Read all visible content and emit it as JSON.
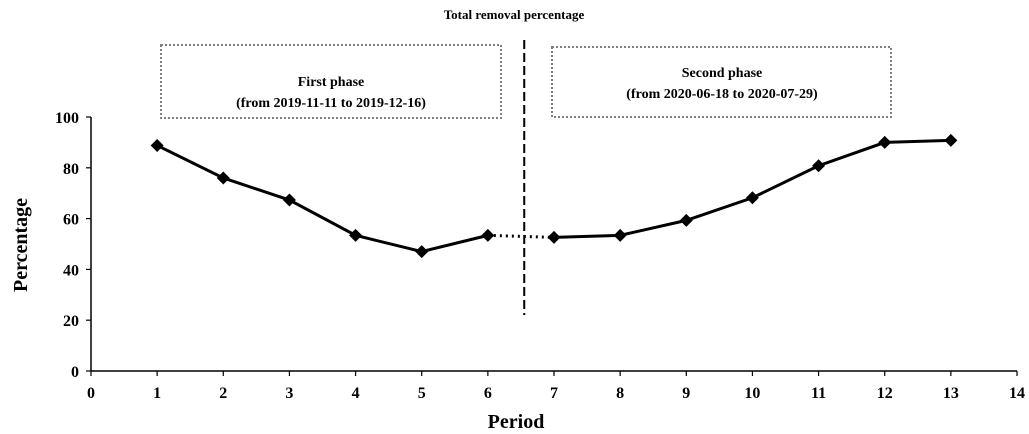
{
  "chart_data": {
    "type": "line",
    "title": "Total removal percentage",
    "xlabel": "Period",
    "ylabel": "Percentage",
    "xlim": [
      0,
      14
    ],
    "ylim": [
      0,
      100
    ],
    "x_ticks": [
      "0",
      "1",
      "2",
      "3",
      "4",
      "5",
      "6",
      "7",
      "8",
      "9",
      "10",
      "11",
      "12",
      "13",
      "14"
    ],
    "y_ticks": [
      "0",
      "20",
      "40",
      "60",
      "80",
      "100"
    ],
    "grid": false,
    "legend": "none",
    "series": [
      {
        "x": [
          1,
          2,
          3,
          4,
          5,
          6,
          7,
          8,
          9,
          10,
          11,
          12,
          13
        ],
        "y": [
          88.8,
          76,
          67.3,
          53.4,
          47,
          53.4,
          52.6,
          53.4,
          59.3,
          68.2,
          80.8,
          90,
          90.8
        ]
      }
    ],
    "phase_divider_x": 6.55,
    "dotted_gap_between_periods": [
      6,
      7
    ],
    "annotations": {
      "first_phase": {
        "line1": "First phase",
        "line2": "(from 2019-11-11 to 2019-12-16)"
      },
      "second_phase": {
        "line1": "Second phase",
        "line2": "(from 2020-06-18 to 2020-07-29)"
      }
    }
  },
  "colors": {
    "line": "#000000",
    "marker": "#000000",
    "box_border": "#7f7f7f"
  }
}
